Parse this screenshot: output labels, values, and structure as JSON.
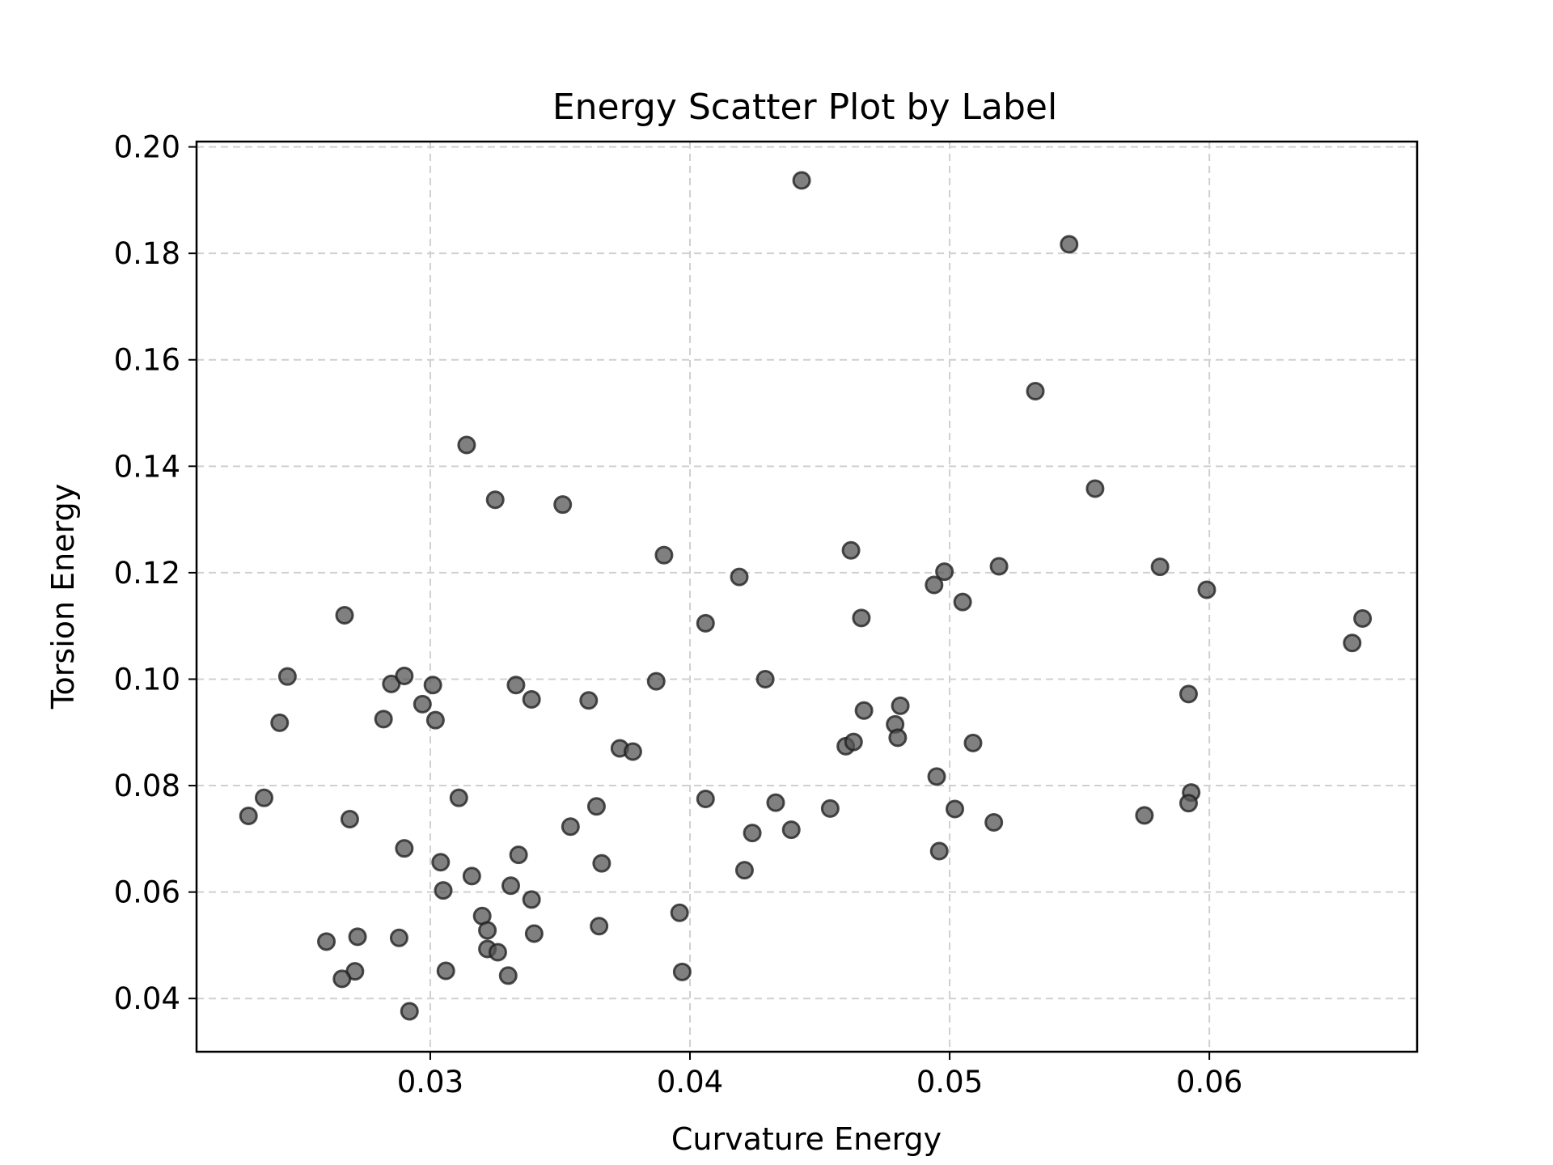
{
  "chart_data": {
    "type": "scatter",
    "title": "Energy Scatter Plot by Label",
    "xlabel": "Curvature Energy",
    "ylabel": "Torsion Energy",
    "xlim": [
      0.021,
      0.068
    ],
    "ylim": [
      0.03,
      0.201
    ],
    "xticks": [
      0.03,
      0.04,
      0.05,
      0.06
    ],
    "xtick_labels": [
      "0.03",
      "0.04",
      "0.05",
      "0.06"
    ],
    "yticks": [
      0.04,
      0.06,
      0.08,
      0.1,
      0.12,
      0.14,
      0.16,
      0.18,
      0.2
    ],
    "ytick_labels": [
      "0.04",
      "0.06",
      "0.08",
      "0.10",
      "0.12",
      "0.14",
      "0.16",
      "0.18",
      "0.20"
    ],
    "grid": true,
    "legend": false,
    "colors": {
      "point_fill": "#555555",
      "point_stroke": "#222222",
      "grid": "#d0d0d0",
      "frame": "#000000"
    },
    "series": [
      {
        "x": [
          0.0443,
          0.0546,
          0.0533,
          0.0556,
          0.0581,
          0.0599,
          0.0659,
          0.0655,
          0.0519,
          0.0505,
          0.0498,
          0.0494,
          0.0466,
          0.0462,
          0.0419,
          0.0406,
          0.039,
          0.0351,
          0.0325,
          0.0314,
          0.0267,
          0.0245,
          0.0242,
          0.0236,
          0.023,
          0.0269,
          0.0282,
          0.0285,
          0.029,
          0.0297,
          0.0301,
          0.0302,
          0.029,
          0.0304,
          0.0305,
          0.0311,
          0.0316,
          0.032,
          0.0322,
          0.0322,
          0.0326,
          0.033,
          0.0331,
          0.0333,
          0.0334,
          0.0339,
          0.0339,
          0.034,
          0.0306,
          0.0292,
          0.0288,
          0.0272,
          0.0271,
          0.0266,
          0.026,
          0.0354,
          0.0361,
          0.0364,
          0.0366,
          0.0365,
          0.0373,
          0.0378,
          0.0387,
          0.0396,
          0.0397,
          0.0406,
          0.0421,
          0.0424,
          0.0429,
          0.0433,
          0.0439,
          0.0454,
          0.046,
          0.0463,
          0.0467,
          0.0479,
          0.048,
          0.0481,
          0.0495,
          0.0496,
          0.0502,
          0.0509,
          0.0517,
          0.0575,
          0.0592,
          0.0593,
          0.0592
        ],
        "y": [
          0.1937,
          0.1817,
          0.1541,
          0.1358,
          0.1211,
          0.1168,
          0.1114,
          0.1068,
          0.1212,
          0.1145,
          0.1202,
          0.1177,
          0.1115,
          0.1242,
          0.1192,
          0.1105,
          0.1233,
          0.1328,
          0.1337,
          0.144,
          0.112,
          0.1005,
          0.0918,
          0.0777,
          0.0743,
          0.0737,
          0.0925,
          0.0991,
          0.1006,
          0.0953,
          0.0989,
          0.0923,
          0.0682,
          0.0656,
          0.0603,
          0.0777,
          0.063,
          0.0555,
          0.0528,
          0.0493,
          0.0487,
          0.0443,
          0.0612,
          0.0989,
          0.067,
          0.0962,
          0.0586,
          0.0522,
          0.0452,
          0.0376,
          0.0514,
          0.0516,
          0.0451,
          0.0437,
          0.0507,
          0.0723,
          0.096,
          0.0761,
          0.0654,
          0.0536,
          0.087,
          0.0864,
          0.0996,
          0.0561,
          0.045,
          0.0775,
          0.0641,
          0.0711,
          0.1,
          0.0768,
          0.0717,
          0.0757,
          0.0874,
          0.0882,
          0.0941,
          0.0915,
          0.089,
          0.095,
          0.0817,
          0.0677,
          0.0756,
          0.088,
          0.0731,
          0.0744,
          0.0972,
          0.0787,
          0.0767
        ]
      }
    ]
  }
}
